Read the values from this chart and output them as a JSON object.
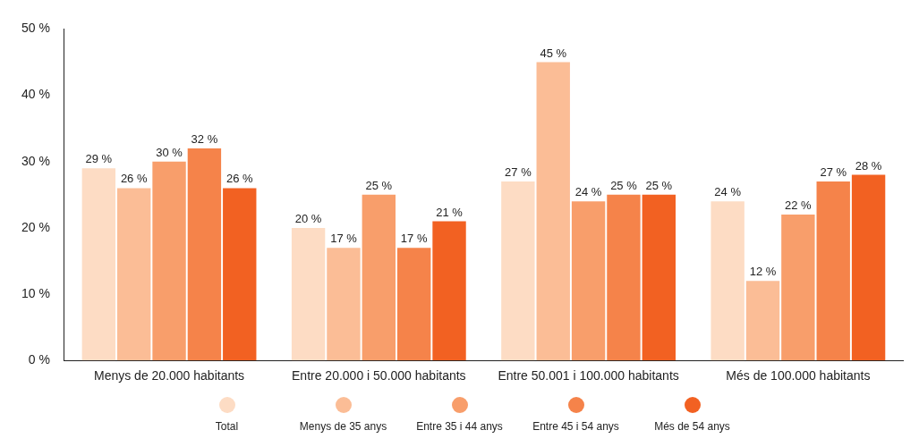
{
  "chart_data": {
    "type": "bar",
    "categories": [
      "Menys de 20.000 habitants",
      "Entre 20.000 i 50.000 habitants",
      "Entre 50.001 i 100.000 habitants",
      "Més de 100.000 habitants"
    ],
    "series": [
      {
        "name": "Total",
        "color": "#fddcc4",
        "values": [
          29,
          20,
          27,
          24
        ],
        "value_labels": [
          "29 %",
          "20 %",
          "27 %",
          "24 %"
        ]
      },
      {
        "name": "Menys de 35 anys",
        "color": "#fbbd96",
        "values": [
          26,
          17,
          45,
          12
        ],
        "value_labels": [
          "26 %",
          "17 %",
          "45 %",
          "12 %"
        ]
      },
      {
        "name": "Entre 35 i 44 anys",
        "color": "#f89e6b",
        "values": [
          30,
          25,
          24,
          22
        ],
        "value_labels": [
          "30 %",
          "25 %",
          "24 %",
          "22 %"
        ]
      },
      {
        "name": "Entre 45 i 54 anys",
        "color": "#f5834a",
        "values": [
          32,
          17,
          25,
          27
        ],
        "value_labels": [
          "32 %",
          "17 %",
          "25 %",
          "27 %"
        ]
      },
      {
        "name": "Més de 54 anys",
        "color": "#f26122",
        "values": [
          26,
          21,
          25,
          28
        ],
        "value_labels": [
          "26 %",
          "21 %",
          "25 %",
          "28 %"
        ]
      }
    ],
    "ylim": [
      0,
      50
    ],
    "yticks": [
      {
        "value": 0,
        "label": "0 %"
      },
      {
        "value": 10,
        "label": "10 %"
      },
      {
        "value": 20,
        "label": "20 %"
      },
      {
        "value": 30,
        "label": "30 %"
      },
      {
        "value": 40,
        "label": "40 %"
      },
      {
        "value": 50,
        "label": "50 %"
      }
    ],
    "grid": false,
    "legend": "bottom"
  }
}
